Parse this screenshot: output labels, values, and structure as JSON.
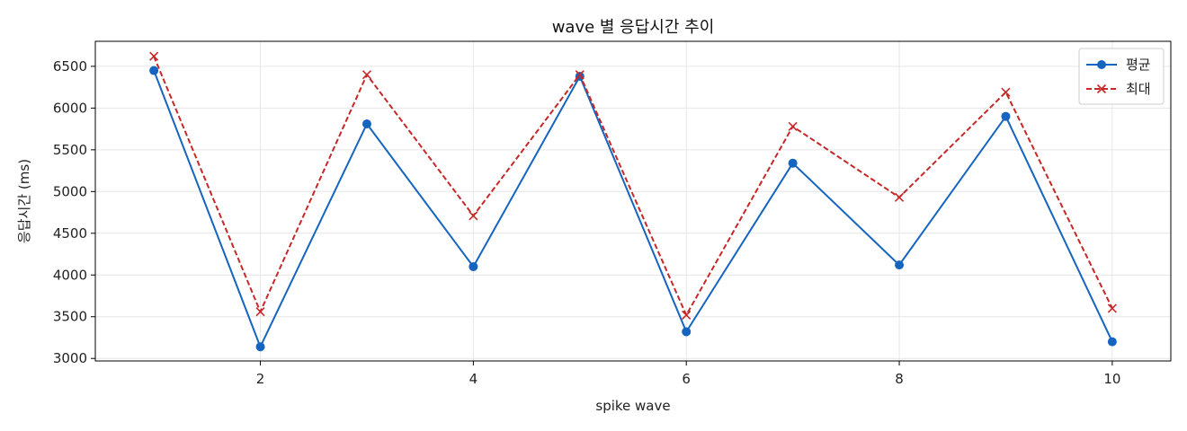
{
  "chart_data": {
    "type": "line",
    "title": "wave 별 응답시간 추이",
    "xlabel": "spike wave",
    "ylabel": "응답시간 (ms)",
    "x": [
      1,
      2,
      3,
      4,
      5,
      6,
      7,
      8,
      9,
      10
    ],
    "xlim": [
      0.45,
      10.55
    ],
    "ylim": [
      2970,
      6800
    ],
    "xticks": [
      2,
      4,
      6,
      8,
      10
    ],
    "yticks": [
      3000,
      3500,
      4000,
      4500,
      5000,
      5500,
      6000,
      6500
    ],
    "grid": true,
    "legend_position": "top-right",
    "series": [
      {
        "name": "평균",
        "color": "#1565c0",
        "style": "solid",
        "marker": "circle",
        "values": [
          6450,
          3140,
          5810,
          4100,
          6380,
          3320,
          5340,
          4120,
          5900,
          3200
        ]
      },
      {
        "name": "최대",
        "color": "#c62828",
        "style": "dashed",
        "marker": "x",
        "values": [
          6620,
          3560,
          6400,
          4710,
          6400,
          3520,
          5780,
          4930,
          6190,
          3600
        ]
      }
    ]
  }
}
